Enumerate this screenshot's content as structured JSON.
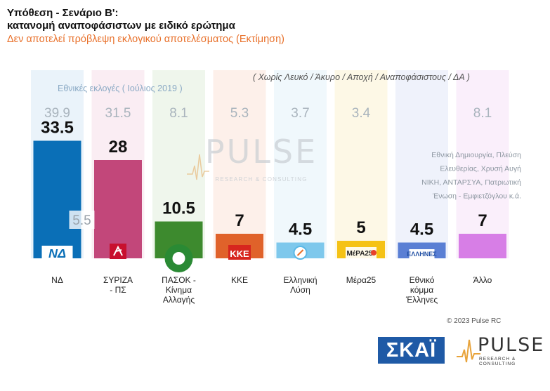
{
  "header": {
    "title_line1": "Υπόθεση - Σενάριο Β':",
    "title_line2": "κατανομή αναποφάσιστων με ειδικό ερώτημα",
    "subtitle": "Δεν αποτελεί πρόβλεψη εκλογικού αποτελέσματος   (Εκτίμηση)"
  },
  "chart_data": {
    "type": "bar",
    "categories": [
      "ΝΔ",
      "ΣΥΡΙΖΑ - ΠΣ",
      "ΠΑΣΟΚ - Κίνημα Αλλαγής",
      "ΚΚΕ",
      "Ελληνική Λύση",
      "Μέρα25",
      "Εθνικό κόμμα Έλληνες",
      "Άλλο"
    ],
    "category_label_lines": [
      [
        "ΝΔ"
      ],
      [
        "ΣΥΡΙΖΑ",
        "- ΠΣ"
      ],
      [
        "ΠΑΣΟΚ -",
        "Κίνημα",
        "Αλλαγής"
      ],
      [
        "ΚΚΕ"
      ],
      [
        "Ελληνική",
        "Λύση"
      ],
      [
        "Μέρα25"
      ],
      [
        "Εθνικό",
        "κόμμα",
        "Έλληνες"
      ],
      [
        "Άλλο"
      ]
    ],
    "series": [
      {
        "values": [
          33.5,
          28,
          10.5,
          7,
          4.5,
          5,
          4.5,
          7
        ]
      },
      {
        "name": "Εθνικές εκλογές  ( Ιούλιος 2019 )",
        "values": [
          39.9,
          31.5,
          8.1,
          5.3,
          3.7,
          3.4,
          null,
          8.1
        ]
      }
    ],
    "value_labels": [
      "33.5",
      "28",
      "10.5",
      "7",
      "4.5",
      "5",
      "4.5",
      "7"
    ],
    "election_labels": [
      "39.9",
      "31.5",
      "8.1",
      "5.3",
      "3.7",
      "3.4",
      "",
      "8.1"
    ],
    "gap_annotation": "5.5",
    "note": "( Χωρίς Λευκό / Άκυρο / Αποχή / Αναποφάσιστους / ΔΑ )",
    "other_note_lines": [
      "Εθνική Δημιουργία, Πλεύση",
      "Ελευθερίας, Χρυσή Αυγή",
      "ΝΙΚΗ, ΑΝΤΑΡΣΥΑ, Πατριωτική",
      "Ένωση - Εμφιετζόγλου  κ.ά."
    ],
    "party_marks": [
      "ΝΔ",
      "",
      "",
      "ΚΚΕ",
      "",
      "ΜέΡΑ25",
      "ΕΛΛΗΝΕΣ",
      ""
    ],
    "ylim": [
      0,
      40
    ],
    "colors": {
      "bars": [
        "#0a6fb7",
        "#c2477a",
        "#3d8a2e",
        "#e0622a",
        "#7ec8ec",
        "#f5c215",
        "#5a7fd4",
        "#d77ee6"
      ],
      "bands": [
        "#d9eaf6",
        "#f5dfea",
        "#e2efdc",
        "#fbe3d8",
        "#e4f2fa",
        "#fbf3d2",
        "#e1e8f7",
        "#f5e2f8"
      ],
      "icons": [
        "#0a6fb7",
        "#c8102e",
        "#2a8a34",
        "#d7261e",
        "#5bb8e6",
        "#f4c000",
        "#1f4ea3",
        "#d77ee6"
      ]
    }
  },
  "watermark": {
    "word": "PULSE",
    "sub": "RESEARCH & CONSULTING"
  },
  "footer": {
    "copyright": "© 2023 Pulse RC",
    "skai_logo": "ΣΚΑΪ",
    "pulse_logo": "PULSE",
    "pulse_sub": "RESEARCH & CONSULTING"
  }
}
